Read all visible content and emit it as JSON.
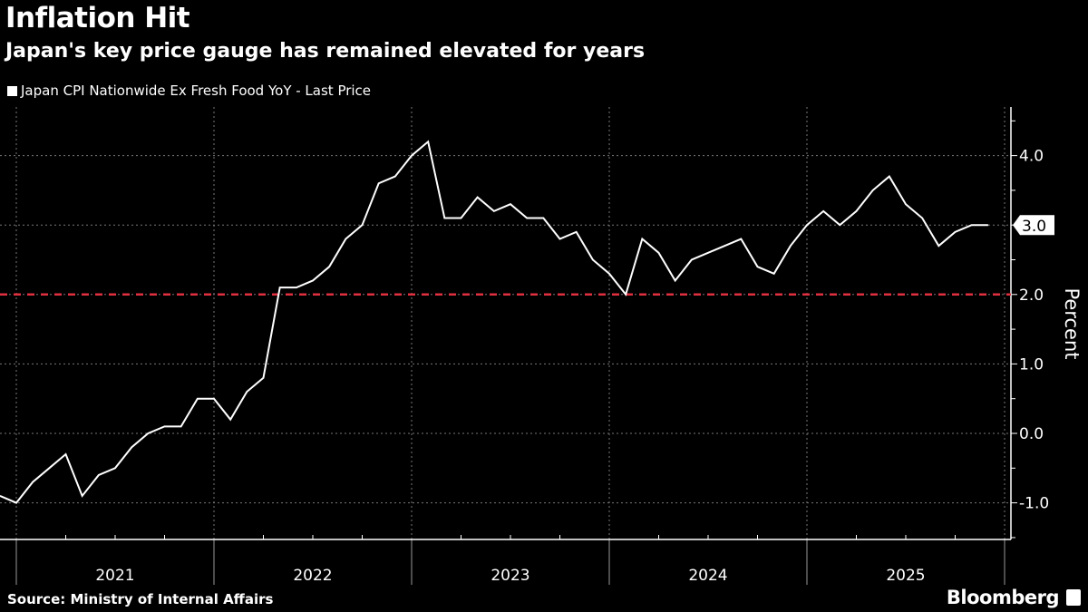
{
  "header": {
    "title": "Inflation Hit",
    "subtitle": "Japan's key price gauge has remained elevated for years"
  },
  "footer": {
    "source": "Source: Ministry of Internal Affairs",
    "logo": "Bloomberg"
  },
  "colors": {
    "background": "#000000",
    "series": "#ffffff",
    "target_line": "#e0303f",
    "grid": "#666666"
  },
  "chart_data": {
    "type": "line",
    "title": "Inflation Hit",
    "subtitle": "Japan's key price gauge has remained elevated for years",
    "ylabel": "Percent",
    "xlabel": "",
    "ylim": [
      -1.5,
      4.6
    ],
    "yticks": [
      "4.0",
      "3.0",
      "2.0",
      "1.0",
      "0.0",
      "-1.0"
    ],
    "ytick_values": [
      4,
      3,
      2,
      1,
      0,
      -1
    ],
    "xticks": [
      "2021",
      "2022",
      "2023",
      "2024",
      "2025"
    ],
    "grid": true,
    "legend_position": "top-left",
    "last_value_label": "3.0",
    "reference_line": {
      "value": 2.0,
      "style": "dashed",
      "color": "#e0303f"
    },
    "series": [
      {
        "name": "Japan CPI Nationwide Ex Fresh Food YoY - Last Price",
        "x": [
          "2020-11",
          "2020-12",
          "2021-01",
          "2021-02",
          "2021-03",
          "2021-04",
          "2021-05",
          "2021-06",
          "2021-07",
          "2021-08",
          "2021-09",
          "2021-10",
          "2021-11",
          "2021-12",
          "2022-01",
          "2022-02",
          "2022-03",
          "2022-04",
          "2022-05",
          "2022-06",
          "2022-07",
          "2022-08",
          "2022-09",
          "2022-10",
          "2022-11",
          "2022-12",
          "2023-01",
          "2023-02",
          "2023-03",
          "2023-04",
          "2023-05",
          "2023-06",
          "2023-07",
          "2023-08",
          "2023-09",
          "2023-10",
          "2023-11",
          "2023-12",
          "2024-01",
          "2024-02",
          "2024-03",
          "2024-04",
          "2024-05",
          "2024-06",
          "2024-07",
          "2024-08",
          "2024-09",
          "2024-10",
          "2024-11",
          "2024-12",
          "2025-01",
          "2025-02",
          "2025-03",
          "2025-04",
          "2025-05",
          "2025-06",
          "2025-07",
          "2025-08",
          "2025-09",
          "2025-10",
          "2025-11"
        ],
        "values": [
          -0.9,
          -1.0,
          -0.7,
          -0.5,
          -0.3,
          -0.9,
          -0.6,
          -0.5,
          -0.2,
          0.0,
          0.1,
          0.1,
          0.5,
          0.5,
          0.2,
          0.6,
          0.8,
          2.1,
          2.1,
          2.2,
          2.4,
          2.8,
          3.0,
          3.6,
          3.7,
          4.0,
          4.2,
          3.1,
          3.1,
          3.4,
          3.2,
          3.3,
          3.1,
          3.1,
          2.8,
          2.9,
          2.5,
          2.3,
          2.0,
          2.8,
          2.6,
          2.2,
          2.5,
          2.6,
          2.7,
          2.8,
          2.4,
          2.3,
          2.7,
          3.0,
          3.2,
          3.0,
          3.2,
          3.5,
          3.7,
          3.3,
          3.1,
          2.7,
          2.9,
          3.0,
          3.0
        ]
      }
    ]
  }
}
